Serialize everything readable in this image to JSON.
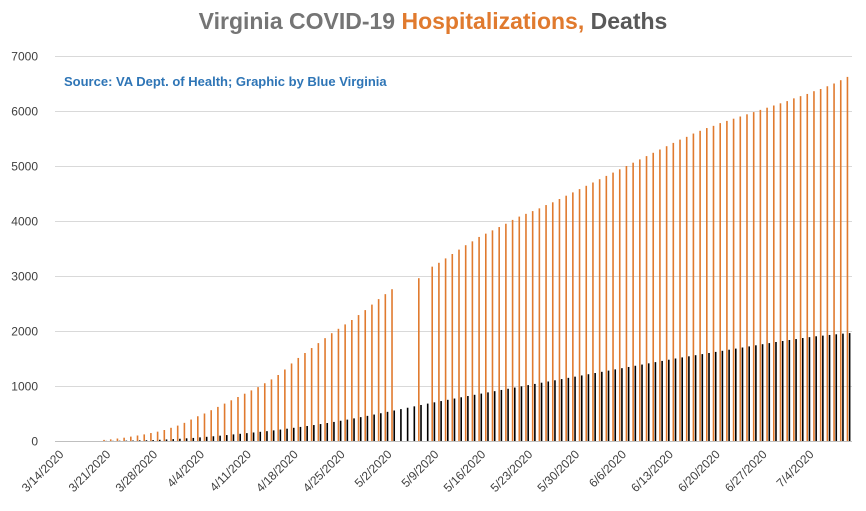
{
  "title": {
    "part1": "Virginia COVID-19 ",
    "part2": "Hospitalizations,",
    "part3": " Deaths"
  },
  "source_note": "Source: VA Dept. of Health; Graphic by Blue Virginia",
  "colors": {
    "title_gray": "#757575",
    "hospitalizations": "#e07a2e",
    "deaths": "#000000",
    "source_blue": "#2e75b6",
    "axis_text": "#404040",
    "gridline": "#d9d9d9"
  },
  "chart_data": {
    "type": "bar",
    "title": "Virginia COVID-19 Hospitalizations, Deaths",
    "grid": true,
    "legend": "none",
    "ylim": [
      0,
      7000
    ],
    "yticks": [
      0,
      1000,
      2000,
      3000,
      4000,
      5000,
      6000,
      7000
    ],
    "xticks": [
      "3/14/2020",
      "3/21/2020",
      "3/28/2020",
      "4/4/2020",
      "4/11/2020",
      "4/18/2020",
      "4/25/2020",
      "5/2/2020",
      "5/9/2020",
      "5/16/2020",
      "5/23/2020",
      "5/30/2020",
      "6/6/2020",
      "6/13/2020",
      "6/20/2020",
      "6/27/2020",
      "7/4/2020"
    ],
    "categories": [
      "3/14",
      "3/15",
      "3/16",
      "3/17",
      "3/18",
      "3/19",
      "3/20",
      "3/21",
      "3/22",
      "3/23",
      "3/24",
      "3/25",
      "3/26",
      "3/27",
      "3/28",
      "3/29",
      "3/30",
      "3/31",
      "4/1",
      "4/2",
      "4/3",
      "4/4",
      "4/5",
      "4/6",
      "4/7",
      "4/8",
      "4/9",
      "4/10",
      "4/11",
      "4/12",
      "4/13",
      "4/14",
      "4/15",
      "4/16",
      "4/17",
      "4/18",
      "4/19",
      "4/20",
      "4/21",
      "4/22",
      "4/23",
      "4/24",
      "4/25",
      "4/26",
      "4/27",
      "4/28",
      "4/29",
      "4/30",
      "5/1",
      "5/2",
      "5/3",
      "5/4",
      "5/5",
      "5/6",
      "5/7",
      "5/8",
      "5/9",
      "5/10",
      "5/11",
      "5/12",
      "5/13",
      "5/14",
      "5/15",
      "5/16",
      "5/17",
      "5/18",
      "5/19",
      "5/20",
      "5/21",
      "5/22",
      "5/23",
      "5/24",
      "5/25",
      "5/26",
      "5/27",
      "5/28",
      "5/29",
      "5/30",
      "5/31",
      "6/1",
      "6/2",
      "6/3",
      "6/4",
      "6/5",
      "6/6",
      "6/7",
      "6/8",
      "6/9",
      "6/10",
      "6/11",
      "6/12",
      "6/13",
      "6/14",
      "6/15",
      "6/16",
      "6/17",
      "6/18",
      "6/19",
      "6/20",
      "6/21",
      "6/22",
      "6/23",
      "6/24",
      "6/25",
      "6/26",
      "6/27",
      "6/28",
      "6/29",
      "6/30",
      "7/1",
      "7/2",
      "7/3",
      "7/4",
      "7/5",
      "7/6",
      "7/7",
      "7/8",
      "7/9",
      "7/10"
    ],
    "series": [
      {
        "values": [
          0,
          0,
          0,
          0,
          0,
          0,
          0,
          20,
          30,
          45,
          60,
          80,
          100,
          120,
          145,
          170,
          200,
          240,
          280,
          330,
          390,
          450,
          500,
          560,
          620,
          680,
          740,
          800,
          860,
          920,
          980,
          1050,
          1120,
          1200,
          1300,
          1410,
          1510,
          1600,
          1690,
          1780,
          1870,
          1960,
          2040,
          2120,
          2200,
          2290,
          2380,
          2480,
          2580,
          2670,
          2760,
          null,
          null,
          null,
          2960,
          null,
          3170,
          3240,
          3320,
          3400,
          3480,
          3560,
          3630,
          3710,
          3770,
          3830,
          3890,
          3950,
          4020,
          4080,
          4130,
          4180,
          4230,
          4290,
          4340,
          4400,
          4460,
          4520,
          4580,
          4640,
          4700,
          4760,
          4820,
          4880,
          4940,
          5000,
          5060,
          5120,
          5180,
          5240,
          5300,
          5360,
          5420,
          5480,
          5530,
          5590,
          5640,
          5690,
          5730,
          5780,
          5820,
          5860,
          5900,
          5940,
          5980,
          6020,
          6060,
          6100,
          6140,
          6180,
          6230,
          6270,
          6310,
          6360,
          6400,
          6450,
          6500,
          6560,
          6620
        ]
      },
      {
        "values": [
          0,
          0,
          0,
          0,
          0,
          0,
          0,
          2,
          3,
          5,
          7,
          9,
          12,
          14,
          17,
          22,
          28,
          34,
          41,
          49,
          56,
          66,
          76,
          86,
          97,
          108,
          120,
          131,
          143,
          155,
          167,
          179,
          193,
          208,
          224,
          240,
          256,
          273,
          290,
          308,
          327,
          347,
          368,
          389,
          411,
          434,
          457,
          481,
          505,
          530,
          555,
          580,
          605,
          630,
          655,
          680,
          703,
          726,
          749,
          772,
          795,
          818,
          840,
          862,
          884,
          906,
          928,
          950,
          972,
          994,
          1016,
          1038,
          1060,
          1082,
          1104,
          1126,
          1148,
          1170,
          1192,
          1214,
          1236,
          1258,
          1280,
          1302,
          1324,
          1346,
          1368,
          1390,
          1412,
          1434,
          1456,
          1478,
          1500,
          1520,
          1540,
          1560,
          1580,
          1600,
          1620,
          1640,
          1660,
          1680,
          1700,
          1720,
          1740,
          1760,
          1780,
          1800,
          1818,
          1836,
          1854,
          1872,
          1888,
          1904,
          1916,
          1928,
          1940,
          1952,
          1962
        ]
      }
    ]
  }
}
